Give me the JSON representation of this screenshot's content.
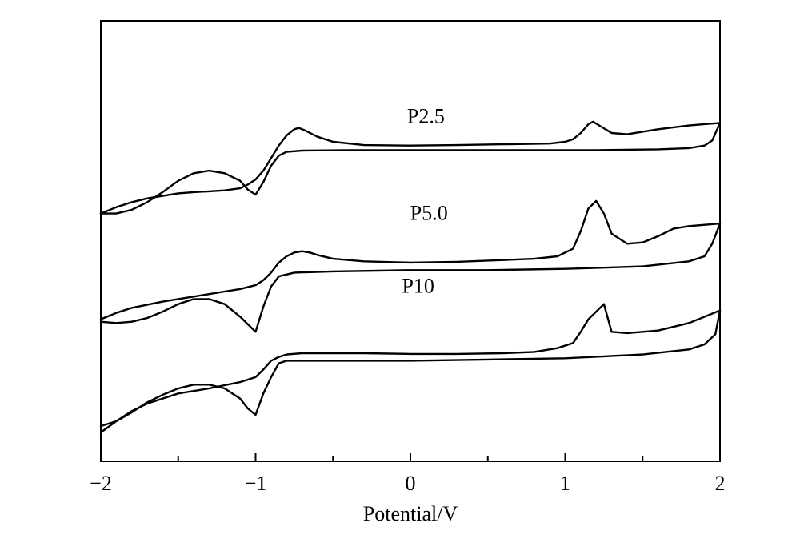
{
  "chart_data": {
    "type": "line",
    "title": "",
    "xlabel": "Potential/V",
    "ylabel": "",
    "xlim": [
      -2,
      2
    ],
    "ylim": [
      0,
      10
    ],
    "x_ticks": [
      -2,
      -1,
      0,
      1,
      2
    ],
    "x_tick_labels": [
      "−2",
      "−1",
      "0",
      "1",
      "2"
    ],
    "minor_x_ticks": [
      -1.5,
      -0.5,
      0.5,
      1.5
    ],
    "y_ticks": [],
    "grid": false,
    "legend": "none",
    "line_color": "#000000",
    "series": [
      {
        "name": "P2.5",
        "forward": {
          "x": [
            -2.0,
            -1.9,
            -1.8,
            -1.7,
            -1.6,
            -1.5,
            -1.4,
            -1.3,
            -1.2,
            -1.1,
            -1.05,
            -1.0,
            -0.95,
            -0.9,
            -0.85,
            -0.8,
            -0.75,
            -0.72,
            -0.68,
            -0.6,
            -0.5,
            -0.3,
            0.0,
            0.3,
            0.6,
            0.9,
            1.0,
            1.05,
            1.1,
            1.15,
            1.18,
            1.22,
            1.3,
            1.4,
            1.6,
            1.8,
            2.0
          ],
          "y": [
            8.7,
            8.95,
            9.15,
            9.3,
            9.4,
            9.5,
            9.55,
            9.58,
            9.62,
            9.7,
            9.85,
            10.05,
            10.4,
            10.9,
            11.4,
            11.8,
            12.05,
            12.1,
            12.0,
            11.75,
            11.55,
            11.42,
            11.4,
            11.42,
            11.45,
            11.48,
            11.55,
            11.65,
            11.9,
            12.25,
            12.35,
            12.2,
            11.9,
            11.85,
            12.05,
            12.2,
            12.3
          ]
        },
        "reverse": {
          "x": [
            2.0,
            1.95,
            1.9,
            1.8,
            1.6,
            1.2,
            0.8,
            0.4,
            0.0,
            -0.4,
            -0.7,
            -0.8,
            -0.85,
            -0.9,
            -0.95,
            -1.0,
            -1.05,
            -1.1,
            -1.2,
            -1.3,
            -1.4,
            -1.5,
            -1.6,
            -1.7,
            -1.8,
            -1.9,
            -2.0
          ],
          "y": [
            12.3,
            11.6,
            11.4,
            11.3,
            11.25,
            11.22,
            11.22,
            11.22,
            11.22,
            11.22,
            11.2,
            11.15,
            11.0,
            10.6,
            9.95,
            9.45,
            9.65,
            10.0,
            10.3,
            10.4,
            10.3,
            10.0,
            9.55,
            9.15,
            8.85,
            8.7,
            8.7
          ]
        }
      },
      {
        "name": "P5.0",
        "forward": {
          "x": [
            -2.0,
            -1.9,
            -1.8,
            -1.6,
            -1.4,
            -1.2,
            -1.1,
            -1.0,
            -0.95,
            -0.9,
            -0.85,
            -0.8,
            -0.75,
            -0.7,
            -0.65,
            -0.6,
            -0.5,
            -0.3,
            0.0,
            0.3,
            0.6,
            0.8,
            0.95,
            1.05,
            1.1,
            1.15,
            1.2,
            1.25,
            1.3,
            1.4,
            1.5,
            1.6,
            1.7,
            1.8,
            2.0
          ],
          "y": [
            4.5,
            4.75,
            4.95,
            5.2,
            5.4,
            5.6,
            5.7,
            5.85,
            6.05,
            6.35,
            6.75,
            7.0,
            7.15,
            7.2,
            7.15,
            7.05,
            6.9,
            6.8,
            6.75,
            6.78,
            6.85,
            6.9,
            7.0,
            7.3,
            8.0,
            8.9,
            9.2,
            8.7,
            7.9,
            7.5,
            7.55,
            7.8,
            8.1,
            8.2,
            8.3
          ]
        },
        "reverse": {
          "x": [
            2.0,
            1.95,
            1.9,
            1.8,
            1.5,
            1.0,
            0.5,
            0.0,
            -0.5,
            -0.75,
            -0.85,
            -0.9,
            -0.95,
            -1.0,
            -1.05,
            -1.1,
            -1.2,
            -1.3,
            -1.4,
            -1.5,
            -1.6,
            -1.7,
            -1.8,
            -1.9,
            -2.0
          ],
          "y": [
            8.3,
            7.5,
            7.0,
            6.8,
            6.6,
            6.5,
            6.45,
            6.45,
            6.4,
            6.35,
            6.2,
            5.8,
            5.0,
            4.0,
            4.3,
            4.6,
            5.1,
            5.3,
            5.3,
            5.1,
            4.8,
            4.55,
            4.4,
            4.35,
            4.4
          ]
        }
      },
      {
        "name": "P10",
        "forward": {
          "x": [
            -2.0,
            -1.9,
            -1.8,
            -1.7,
            -1.5,
            -1.3,
            -1.1,
            -1.0,
            -0.95,
            -0.9,
            -0.85,
            -0.8,
            -0.7,
            -0.5,
            -0.3,
            0.0,
            0.3,
            0.6,
            0.8,
            0.95,
            1.05,
            1.1,
            1.15,
            1.2,
            1.25,
            1.3,
            1.4,
            1.6,
            1.8,
            2.0
          ],
          "y": [
            0.0,
            0.45,
            0.85,
            1.15,
            1.55,
            1.75,
            2.0,
            2.2,
            2.5,
            2.85,
            3.0,
            3.1,
            3.15,
            3.15,
            3.15,
            3.12,
            3.12,
            3.15,
            3.2,
            3.35,
            3.55,
            4.0,
            4.5,
            4.8,
            5.1,
            4.0,
            3.95,
            4.05,
            4.35,
            4.85
          ]
        },
        "reverse": {
          "x": [
            2.0,
            1.97,
            1.9,
            1.8,
            1.5,
            1.0,
            0.5,
            0.0,
            -0.5,
            -0.8,
            -0.85,
            -0.9,
            -0.95,
            -1.0,
            -1.05,
            -1.1,
            -1.2,
            -1.3,
            -1.4,
            -1.5,
            -1.6,
            -1.7,
            -1.8,
            -1.9,
            -2.0
          ],
          "y": [
            4.85,
            3.9,
            3.5,
            3.3,
            3.1,
            2.95,
            2.9,
            2.85,
            2.85,
            2.85,
            2.75,
            2.2,
            1.55,
            0.7,
            0.95,
            1.35,
            1.75,
            1.9,
            1.9,
            1.75,
            1.5,
            1.2,
            0.8,
            0.45,
            0.25
          ]
        }
      }
    ],
    "annotations": [
      {
        "text": "P2.5",
        "x": 0.1,
        "y": 12.3
      },
      {
        "text": "P5.0",
        "x": 0.12,
        "y": 8.45
      },
      {
        "text": "P10",
        "x": 0.05,
        "y": 5.55
      }
    ]
  }
}
